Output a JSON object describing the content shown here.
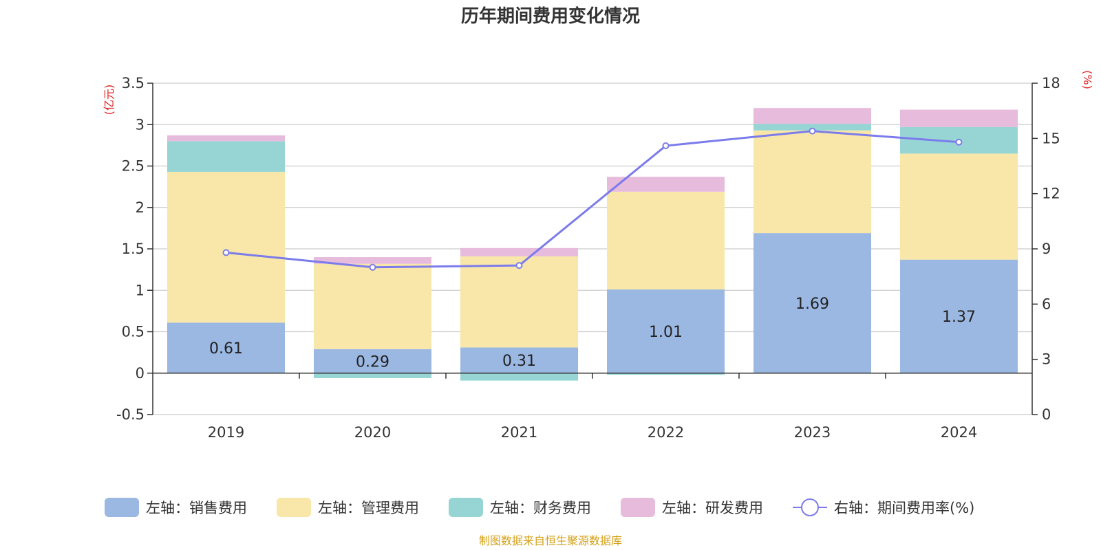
{
  "chart_data": {
    "type": "bar",
    "stacked": true,
    "title": "历年期间费用变化情况",
    "categories": [
      "2019",
      "2020",
      "2021",
      "2022",
      "2023",
      "2024"
    ],
    "left_axis": {
      "unit_label": "(亿元)",
      "range": [
        -0.5,
        3.5
      ],
      "ticks": [
        "3.5",
        "3",
        "2.5",
        "2",
        "1.5",
        "1",
        "0.5",
        "0",
        "-0.5"
      ],
      "tick_values": [
        3.5,
        3,
        2.5,
        2,
        1.5,
        1,
        0.5,
        0,
        -0.5
      ]
    },
    "right_axis": {
      "unit_label": "(%)",
      "range": [
        0,
        18
      ],
      "ticks": [
        "18",
        "15",
        "12",
        "9",
        "6",
        "3",
        "0"
      ],
      "tick_values": [
        18,
        15,
        12,
        9,
        6,
        3,
        0
      ]
    },
    "series": [
      {
        "name": "左轴：销售费用",
        "color": "#9bb8e2",
        "axis": "left",
        "values": [
          0.61,
          0.29,
          0.31,
          1.01,
          1.69,
          1.37
        ]
      },
      {
        "name": "左轴：管理费用",
        "color": "#f8e7a8",
        "axis": "left",
        "values": [
          1.82,
          1.03,
          1.1,
          1.18,
          1.24,
          1.28
        ]
      },
      {
        "name": "左轴：财务费用",
        "color": "#97d5d4",
        "axis": "left",
        "values": [
          0.37,
          -0.06,
          -0.09,
          -0.02,
          0.08,
          0.32
        ]
      },
      {
        "name": "左轴：研发费用",
        "color": "#e6bbdc",
        "axis": "left",
        "values": [
          0.07,
          0.08,
          0.1,
          0.18,
          0.19,
          0.21
        ]
      }
    ],
    "line_series": {
      "name": "右轴：期间费用率(%)",
      "color": "#7b7beb",
      "axis": "right",
      "values": [
        8.8,
        8.0,
        8.1,
        14.6,
        15.4,
        14.8
      ]
    },
    "data_labels": [
      "0.61",
      "0.29",
      "0.31",
      "1.01",
      "1.69",
      "1.37"
    ],
    "source": "制图数据来自恒生聚源数据库"
  },
  "colors": {
    "axis_unit": "#e02020",
    "source": "#d4a017",
    "grid": "#cccccc",
    "axis": "#333333"
  }
}
